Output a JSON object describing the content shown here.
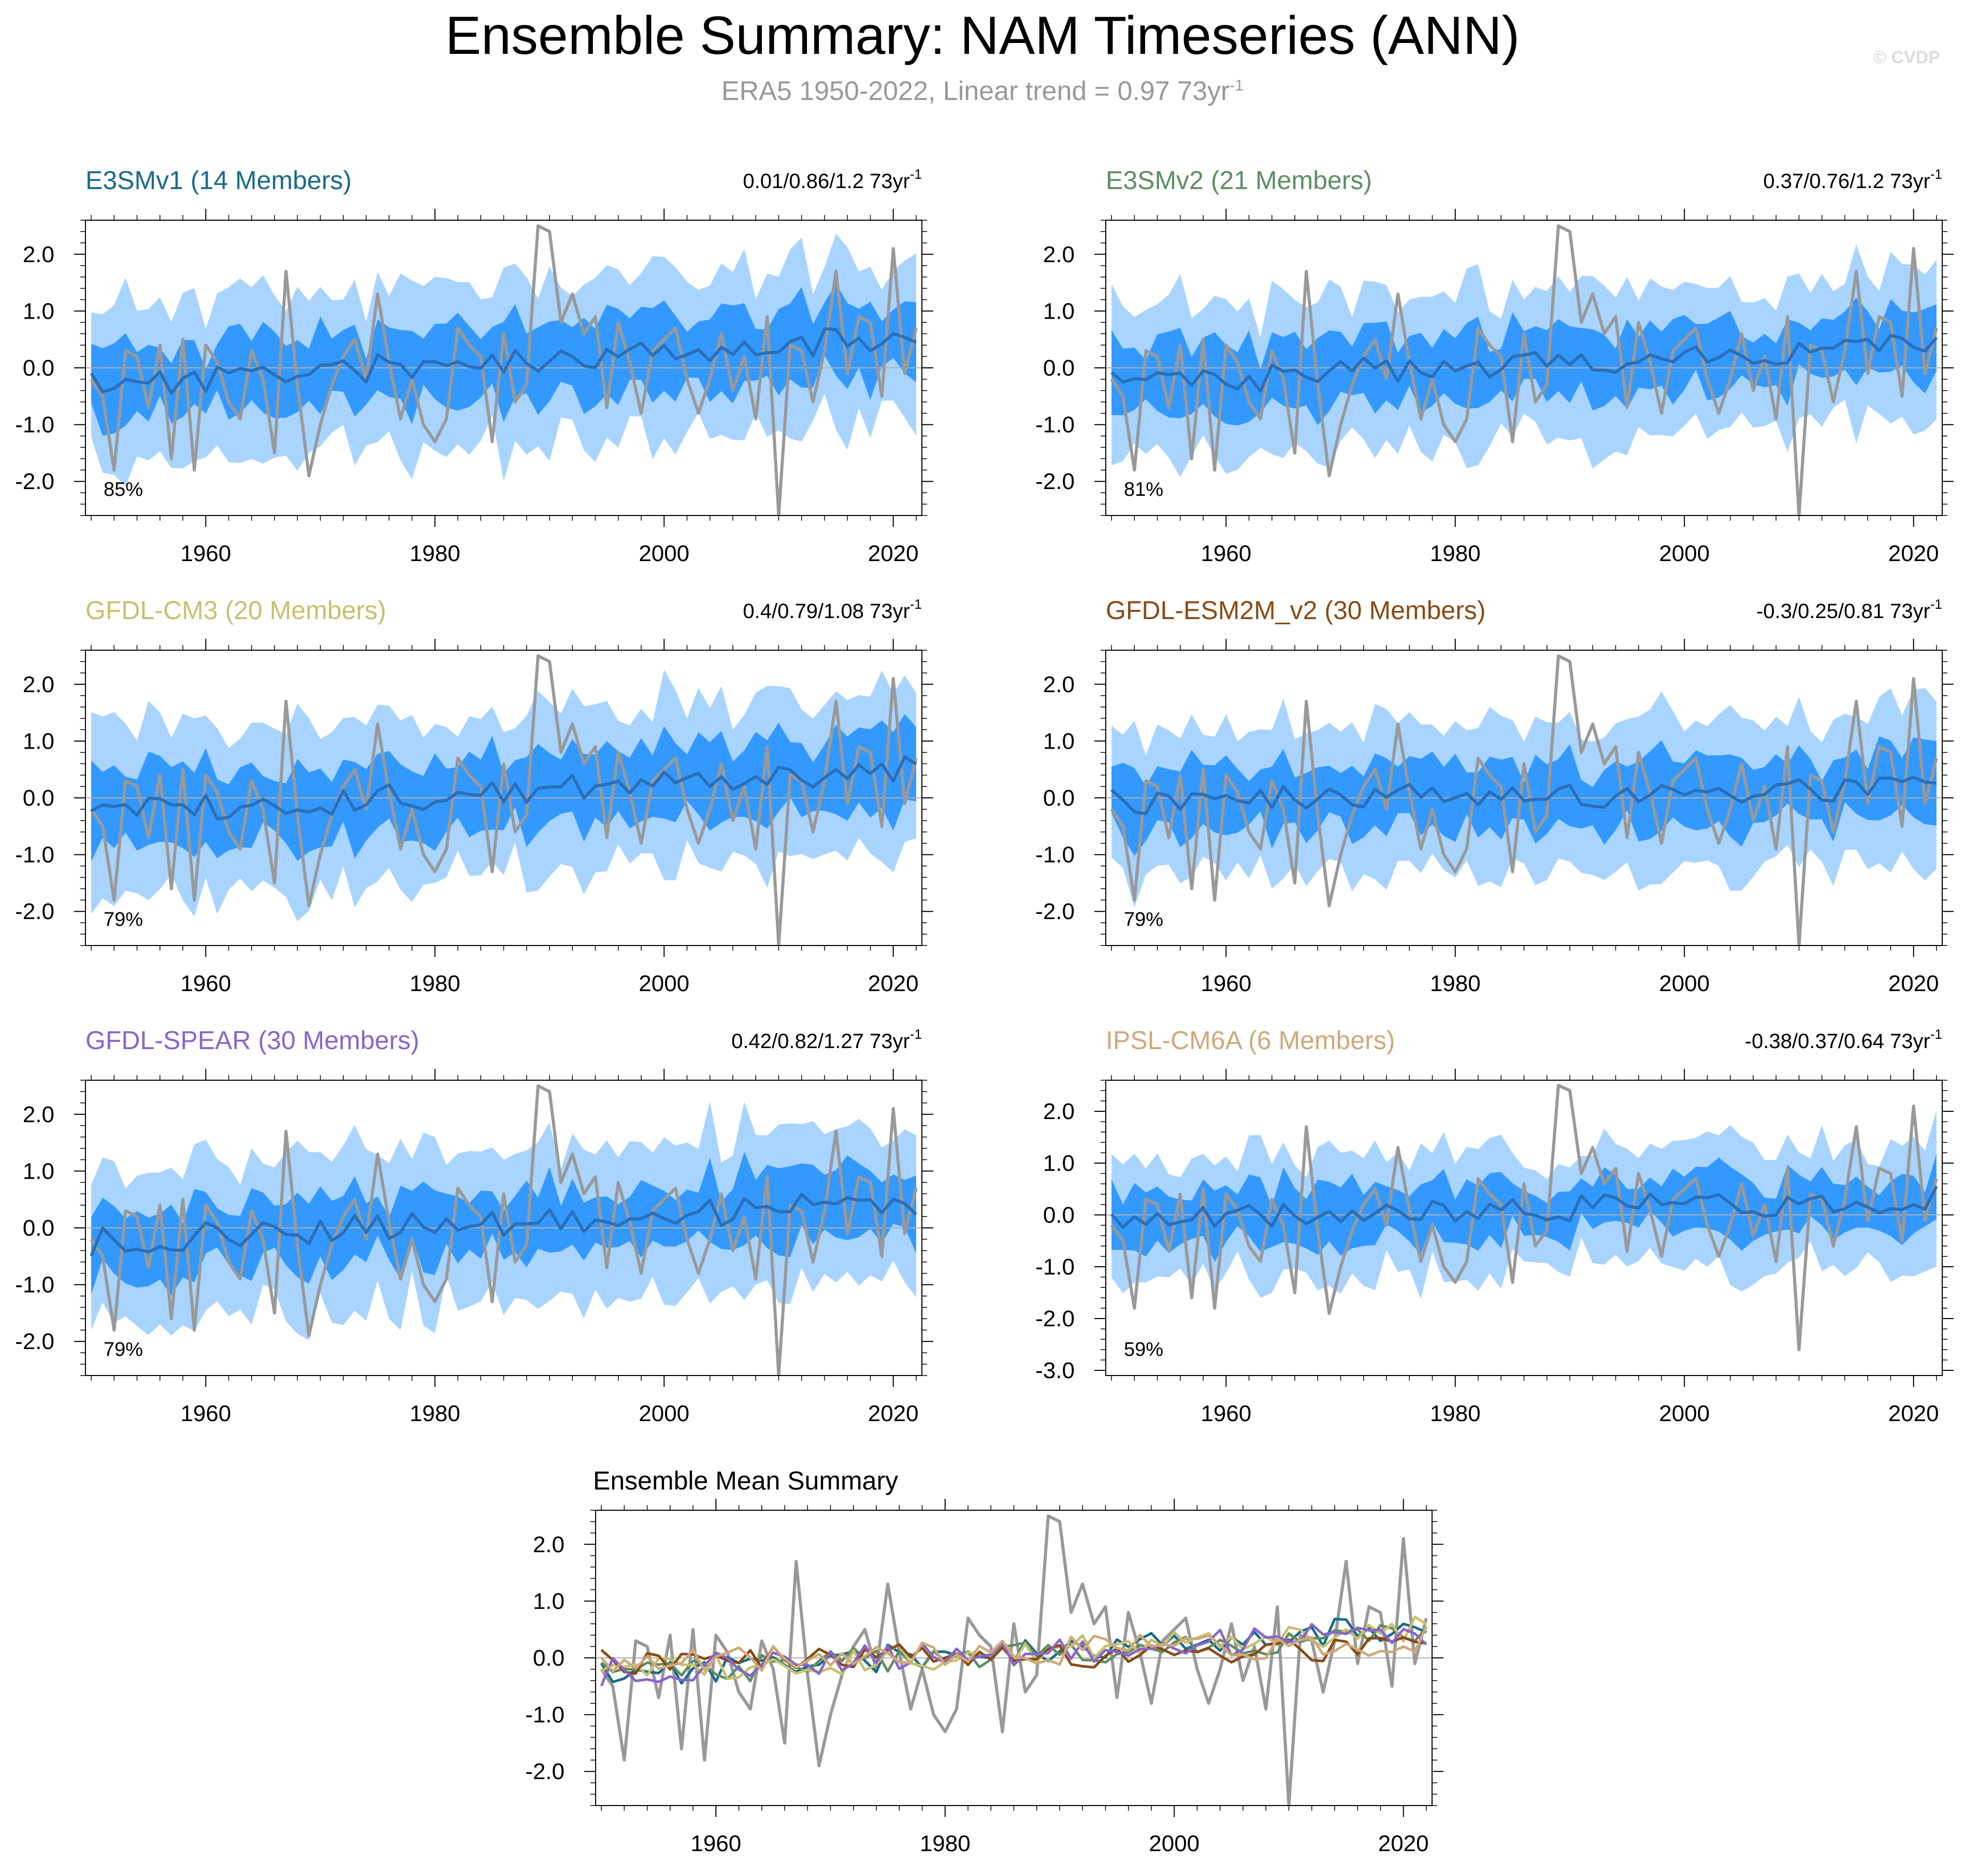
{
  "title": "Ensemble Summary: NAM Timeseries (ANN)",
  "subtitle": {
    "text": "ERA5 1950-2022, Linear trend = 0.97 73yr",
    "superscript": "-1"
  },
  "copyright": "© CVDP",
  "colors": {
    "obs_line": "#999999",
    "ensemble_mean": "#2a6fb8",
    "band_inner": "#3399ff",
    "band_outer": "#a8d4ff",
    "zero_line": "#b0b0b0"
  },
  "chart_data": [
    {
      "type": "area",
      "model": "E3SMv1",
      "title": "E3SMv1 (14 Members)",
      "title_color": "#1a6b8a",
      "stats": "0.01/0.86/1.2 73yr",
      "stats_sup": "-1",
      "percent": "85%",
      "xlim": [
        1949.5,
        2022.5
      ],
      "ylim": [
        -2.6,
        2.6
      ],
      "xticks": [
        "1960",
        "1980",
        "2000",
        "2020"
      ],
      "yticks": [
        "2.0",
        "1.0",
        "0.0",
        "-1.0",
        "-2.0"
      ],
      "mean_trend": [
        -0.3,
        0.55
      ],
      "spread": [
        0.6,
        1.3
      ],
      "seed": 11
    },
    {
      "type": "area",
      "model": "E3SMv2",
      "title": "E3SMv2 (21 Members)",
      "title_color": "#5e8e62",
      "stats": "0.37/0.76/1.2 73yr",
      "stats_sup": "-1",
      "percent": "81%",
      "xlim": [
        1949.5,
        2022.5
      ],
      "ylim": [
        -2.6,
        2.6
      ],
      "xticks": [
        "1960",
        "1980",
        "2000",
        "2020"
      ],
      "yticks": [
        "2.0",
        "1.0",
        "0.0",
        "-1.0",
        "-2.0"
      ],
      "mean_trend": [
        -0.3,
        0.45
      ],
      "spread": [
        0.55,
        1.25
      ],
      "seed": 23
    },
    {
      "type": "area",
      "model": "GFDL-CM3",
      "title": "GFDL-CM3 (20 Members)",
      "title_color": "#c9c06e",
      "stats": "0.4/0.79/1.08 73yr",
      "stats_sup": "-1",
      "percent": "79%",
      "xlim": [
        1949.5,
        2022.5
      ],
      "ylim": [
        -2.6,
        2.6
      ],
      "xticks": [
        "1960",
        "1980",
        "2000",
        "2020"
      ],
      "yticks": [
        "2.0",
        "1.0",
        "0.0",
        "-1.0",
        "-2.0"
      ],
      "mean_trend": [
        -0.3,
        0.55
      ],
      "spread": [
        0.6,
        1.3
      ],
      "seed": 37
    },
    {
      "type": "area",
      "model": "GFDL-ESM2M_v2",
      "title": "GFDL-ESM2M_v2 (30 Members)",
      "title_color": "#8a4a14",
      "stats": "-0.3/0.25/0.81 73yr",
      "stats_sup": "-1",
      "percent": "79%",
      "xlim": [
        1949.5,
        2022.5
      ],
      "ylim": [
        -2.6,
        2.6
      ],
      "xticks": [
        "1960",
        "1980",
        "2000",
        "2020"
      ],
      "yticks": [
        "2.0",
        "1.0",
        "0.0",
        "-1.0",
        "-2.0"
      ],
      "mean_trend": [
        -0.1,
        0.15
      ],
      "spread": [
        0.55,
        1.2
      ],
      "seed": 41
    },
    {
      "type": "area",
      "model": "GFDL-SPEAR",
      "title": "GFDL-SPEAR (30 Members)",
      "title_color": "#8866cc",
      "stats": "0.42/0.82/1.27 73yr",
      "stats_sup": "-1",
      "percent": "79%",
      "xlim": [
        1949.5,
        2022.5
      ],
      "ylim": [
        -2.6,
        2.6
      ],
      "xticks": [
        "1960",
        "1980",
        "2000",
        "2020"
      ],
      "yticks": [
        "2.0",
        "1.0",
        "0.0",
        "-1.0",
        "-2.0"
      ],
      "mean_trend": [
        -0.25,
        0.45
      ],
      "spread": [
        0.55,
        1.3
      ],
      "seed": 53
    },
    {
      "type": "area",
      "model": "IPSL-CM6A",
      "title": "IPSL-CM6A (6 Members)",
      "title_color": "#cfa97a",
      "stats": "-0.38/0.37/0.64 73yr",
      "stats_sup": "-1",
      "percent": "59%",
      "xlim": [
        1949.5,
        2022.5
      ],
      "ylim": [
        -3.1,
        2.6
      ],
      "xticks": [
        "1960",
        "1980",
        "2000",
        "2020"
      ],
      "yticks": [
        "2.0",
        "1.0",
        "0.0",
        "-1.0",
        "-2.0",
        "-3.0"
      ],
      "mean_trend": [
        -0.1,
        0.3
      ],
      "spread": [
        0.5,
        1.1
      ],
      "seed": 67
    },
    {
      "type": "line",
      "title": "Ensemble Mean Summary",
      "xlim": [
        1949.5,
        2022.5
      ],
      "ylim": [
        -2.6,
        2.6
      ],
      "xticks": [
        "1960",
        "1980",
        "2000",
        "2020"
      ],
      "yticks": [
        "2.0",
        "1.0",
        "0.0",
        "-1.0",
        "-2.0"
      ],
      "series": [
        {
          "name": "E3SMv1",
          "color": "#1a6b8a"
        },
        {
          "name": "E3SMv2",
          "color": "#5e8e62"
        },
        {
          "name": "GFDL-CM3",
          "color": "#c9c06e"
        },
        {
          "name": "GFDL-ESM2M_v2",
          "color": "#8a4a14"
        },
        {
          "name": "GFDL-SPEAR",
          "color": "#8866cc"
        },
        {
          "name": "IPSL-CM6A",
          "color": "#cfa97a"
        }
      ]
    }
  ],
  "observations": {
    "name": "ERA5",
    "years": [
      1950,
      2022
    ],
    "values": [
      -0.2,
      -0.5,
      -1.8,
      0.3,
      0.2,
      -0.7,
      0.4,
      -1.6,
      0.5,
      -1.8,
      0.4,
      0.1,
      -0.6,
      -0.9,
      0.3,
      -0.2,
      -1.5,
      1.7,
      -0.3,
      -1.9,
      -1.0,
      -0.3,
      0.2,
      0.5,
      -0.2,
      1.3,
      0.1,
      -0.9,
      -0.2,
      -1.0,
      -1.3,
      -0.9,
      0.7,
      0.4,
      0.2,
      -1.3,
      0.6,
      -0.6,
      -0.3,
      2.5,
      2.4,
      0.8,
      1.3,
      0.6,
      0.9,
      -0.7,
      0.8,
      0.1,
      -0.8,
      0.3,
      0.5,
      0.7,
      -0.2,
      -0.8,
      -0.2,
      0.6,
      -0.4,
      0.2,
      -0.9,
      0.9,
      -2.6,
      0.4,
      0.3,
      -0.6,
      0.3,
      1.7,
      -0.1,
      0.9,
      0.8,
      -0.5,
      2.1,
      -0.1,
      0.7
    ]
  }
}
